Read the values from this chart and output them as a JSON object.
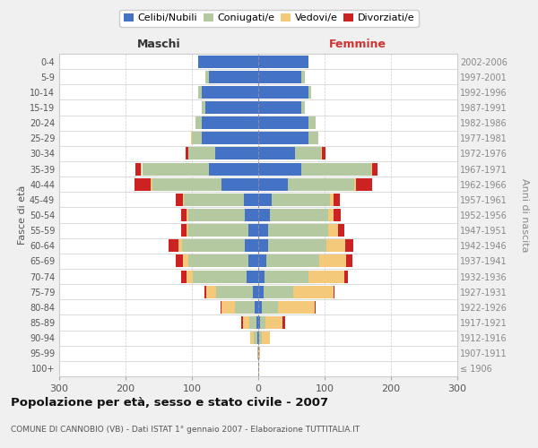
{
  "age_groups": [
    "100+",
    "95-99",
    "90-94",
    "85-89",
    "80-84",
    "75-79",
    "70-74",
    "65-69",
    "60-64",
    "55-59",
    "50-54",
    "45-49",
    "40-44",
    "35-39",
    "30-34",
    "25-29",
    "20-24",
    "15-19",
    "10-14",
    "5-9",
    "0-4"
  ],
  "birth_years": [
    "≤ 1906",
    "1907-1911",
    "1912-1916",
    "1917-1921",
    "1922-1926",
    "1927-1931",
    "1932-1936",
    "1937-1941",
    "1942-1946",
    "1947-1951",
    "1952-1956",
    "1957-1961",
    "1962-1966",
    "1967-1971",
    "1972-1976",
    "1977-1981",
    "1982-1986",
    "1987-1991",
    "1992-1996",
    "1997-2001",
    "2002-2006"
  ],
  "male_celibi": [
    0,
    0,
    2,
    3,
    5,
    8,
    18,
    15,
    20,
    15,
    20,
    22,
    55,
    75,
    65,
    85,
    85,
    80,
    85,
    75,
    90
  ],
  "male_coniugati": [
    0,
    1,
    5,
    10,
    30,
    55,
    80,
    90,
    95,
    90,
    85,
    90,
    105,
    100,
    40,
    15,
    10,
    5,
    5,
    5,
    0
  ],
  "male_vedovi": [
    0,
    1,
    5,
    10,
    20,
    15,
    10,
    8,
    5,
    3,
    3,
    2,
    2,
    2,
    0,
    1,
    0,
    0,
    0,
    0,
    0
  ],
  "male_divorziati": [
    0,
    0,
    0,
    3,
    2,
    3,
    8,
    12,
    15,
    8,
    8,
    10,
    25,
    8,
    5,
    0,
    0,
    0,
    0,
    0,
    0
  ],
  "female_celibi": [
    0,
    0,
    2,
    3,
    5,
    8,
    10,
    12,
    15,
    15,
    18,
    20,
    45,
    65,
    55,
    75,
    75,
    65,
    75,
    65,
    75
  ],
  "female_coniugati": [
    0,
    0,
    3,
    8,
    25,
    45,
    65,
    80,
    88,
    90,
    88,
    88,
    100,
    105,
    40,
    15,
    12,
    5,
    5,
    5,
    0
  ],
  "female_vedovi": [
    2,
    3,
    12,
    25,
    55,
    60,
    55,
    40,
    28,
    15,
    8,
    5,
    2,
    2,
    1,
    0,
    0,
    0,
    0,
    0,
    0
  ],
  "female_divorziati": [
    0,
    0,
    0,
    5,
    2,
    2,
    5,
    10,
    12,
    10,
    10,
    10,
    25,
    8,
    5,
    0,
    0,
    0,
    0,
    0,
    0
  ],
  "colors": {
    "celibi": "#4472c4",
    "coniugati": "#b5c9a0",
    "vedovi": "#f5c97a",
    "divorziati": "#cc2222"
  },
  "xlim": 300,
  "title": "Popolazione per età, sesso e stato civile - 2007",
  "subtitle": "COMUNE DI CANNOBIO (VB) - Dati ISTAT 1° gennaio 2007 - Elaborazione TUTTITALIA.IT",
  "ylabel_left": "Fasce di età",
  "ylabel_right": "Anni di nascita",
  "xlabel_left": "Maschi",
  "xlabel_right": "Femmine",
  "bg_color": "#f0f0f0",
  "plot_bg_color": "#ffffff",
  "grid_color": "#cccccc"
}
